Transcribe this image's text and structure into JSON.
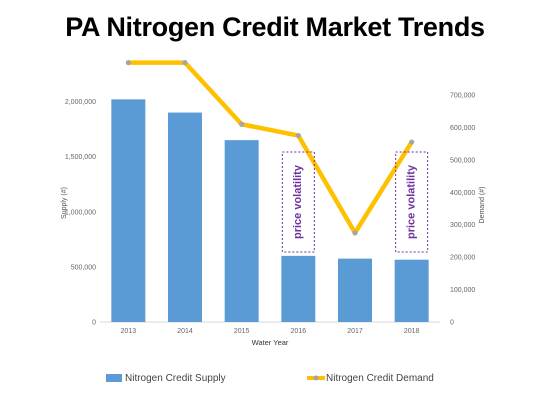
{
  "title": "PA Nitrogen Credit Market Trends",
  "colors": {
    "supply": "#5b9bd5",
    "demand": "#ffc000",
    "demand_marker": "#a5a5a5",
    "volatility": "#7030a0"
  },
  "chart_data": {
    "type": "bar",
    "categories": [
      "2013",
      "2014",
      "2015",
      "2016",
      "2017",
      "2018"
    ],
    "xlabel": "Water Year",
    "ylabel": "Supply (#)",
    "y2label": "Demand (#)",
    "ylim": [
      0,
      2250000
    ],
    "y2lim": [
      0,
      765000
    ],
    "y_ticks": [
      "0",
      "500,000",
      "1,000,000",
      "1,500,000",
      "2,000,000"
    ],
    "y2_ticks": [
      "0",
      "100,000",
      "200,000",
      "300,000",
      "400,000",
      "500,000",
      "600,000",
      "700,000"
    ],
    "grid": false,
    "legend_position": "bottom",
    "series": [
      {
        "name": "Nitrogen Credit Supply",
        "type": "bar",
        "axis": "left",
        "values": [
          2020000,
          1900000,
          1650000,
          600000,
          575000,
          565000
        ]
      },
      {
        "name": "Nitrogen Credit Demand",
        "type": "line",
        "axis": "right",
        "values": [
          800000,
          800000,
          610000,
          575000,
          275000,
          555000
        ]
      }
    ],
    "annotations": [
      {
        "text": "price volatility",
        "category": "2016"
      },
      {
        "text": "price volatility",
        "category": "2018"
      }
    ]
  }
}
